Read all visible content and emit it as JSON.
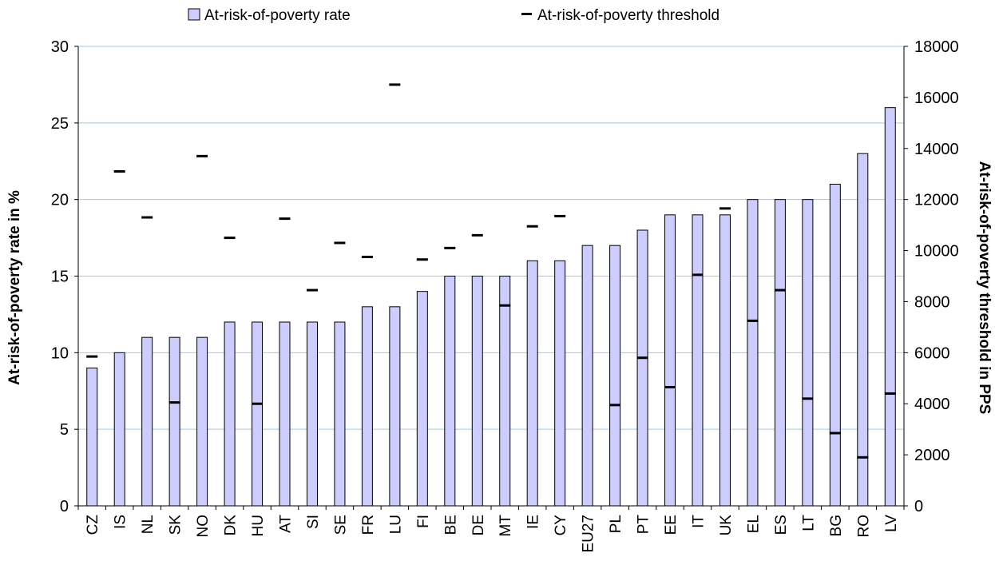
{
  "chart_data": {
    "type": "bar",
    "categories": [
      "CZ",
      "IS",
      "NL",
      "SK",
      "NO",
      "DK",
      "HU",
      "AT",
      "SI",
      "SE",
      "FR",
      "LU",
      "FI",
      "BE",
      "DE",
      "MT",
      "IE",
      "CY",
      "EU27",
      "PL",
      "PT",
      "EE",
      "IT",
      "UK",
      "EL",
      "ES",
      "LT",
      "BG",
      "RO",
      "LV"
    ],
    "series": [
      {
        "name": "At-risk-of-poverty rate",
        "axis": "left",
        "mark": "bar",
        "values": [
          9,
          10,
          11,
          11,
          11,
          12,
          12,
          12,
          12,
          12,
          13,
          13,
          14,
          15,
          15,
          15,
          16,
          16,
          17,
          17,
          18,
          19,
          19,
          19,
          20,
          20,
          20,
          21,
          23,
          26
        ]
      },
      {
        "name": "At-risk-of-poverty threshold",
        "axis": "right",
        "mark": "dash",
        "values": [
          5850,
          13100,
          11300,
          4050,
          13700,
          10500,
          4000,
          11250,
          8450,
          10300,
          9750,
          16500,
          9650,
          10100,
          10600,
          7850,
          10950,
          11350,
          null,
          3950,
          5800,
          4650,
          9050,
          11650,
          7250,
          8450,
          4200,
          2850,
          1900,
          4400
        ]
      }
    ],
    "title": "",
    "ylabel": "At-risk-of-poverty rate in %",
    "y2label": "At-risk-of-poverty threshold in PPS",
    "ylim": [
      0,
      30
    ],
    "yticks": [
      0,
      5,
      10,
      15,
      20,
      25,
      30
    ],
    "y2lim": [
      0,
      18000
    ],
    "y2ticks": [
      0,
      2000,
      4000,
      6000,
      8000,
      10000,
      12000,
      14000,
      16000,
      18000
    ],
    "grid": true,
    "legend_position": "top",
    "colors": {
      "bar_fill": "#ccccff",
      "bar_stroke": "#000000",
      "grid": "#99ccee",
      "dash": "#000000"
    }
  }
}
